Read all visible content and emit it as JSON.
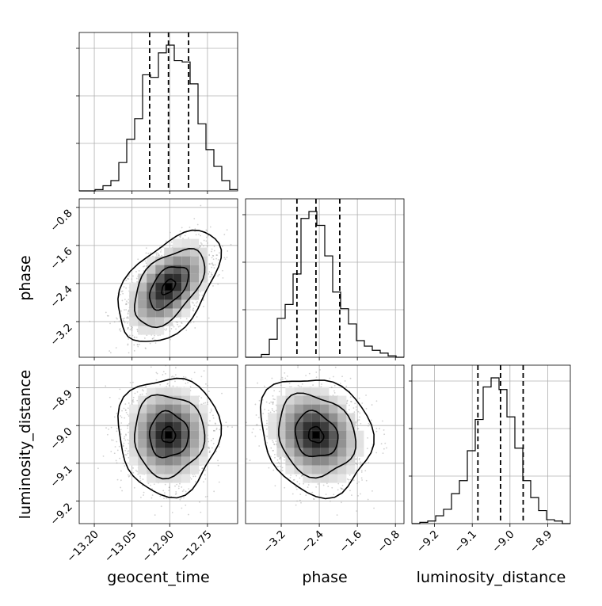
{
  "chart_data": {
    "type": "corner",
    "parameters": [
      "geocent_time",
      "phase",
      "luminosity_distance"
    ],
    "axis_ticks": {
      "geocent_time": [
        "−13.20",
        "−13.05",
        "−12.90",
        "−12.75"
      ],
      "phase": [
        "−3.2",
        "−2.4",
        "−1.6",
        "−0.8"
      ],
      "luminosity_distance": [
        "−9.2",
        "−9.1",
        "−9.0",
        "−8.9"
      ]
    },
    "axis_ranges": {
      "geocent_time": [
        -13.26,
        -12.63
      ],
      "phase": [
        -3.95,
        -0.62
      ],
      "luminosity_distance": [
        -9.26,
        -8.84
      ]
    },
    "quantiles": {
      "geocent_time": [
        -12.98,
        -12.905,
        -12.825
      ],
      "phase": [
        -2.87,
        -2.47,
        -1.97
      ],
      "luminosity_distance": [
        -9.085,
        -9.025,
        -8.965
      ]
    },
    "histograms": {
      "geocent_time": {
        "bin_start": -13.26,
        "bin_width": 0.0315,
        "counts": [
          0,
          0,
          1,
          4,
          8,
          22,
          40,
          56,
          90,
          88,
          107,
          113,
          101,
          100,
          83,
          52,
          32,
          19,
          8,
          1
        ]
      },
      "phase": {
        "bin_start": -3.95,
        "bin_width": 0.1665,
        "counts": [
          0,
          0,
          2,
          13,
          28,
          38,
          60,
          100,
          105,
          95,
          73,
          47,
          35,
          24,
          12,
          8,
          5,
          3,
          1,
          0
        ]
      },
      "luminosity_distance": {
        "bin_start": -9.26,
        "bin_width": 0.021,
        "counts": [
          0,
          1,
          2,
          6,
          11,
          23,
          33,
          56,
          80,
          105,
          112,
          103,
          82,
          58,
          33,
          20,
          10,
          3,
          2,
          0
        ]
      }
    },
    "grid": true,
    "scatter_color": "#9a9a9a",
    "density_color": "#000000",
    "line_color": "#000000"
  }
}
